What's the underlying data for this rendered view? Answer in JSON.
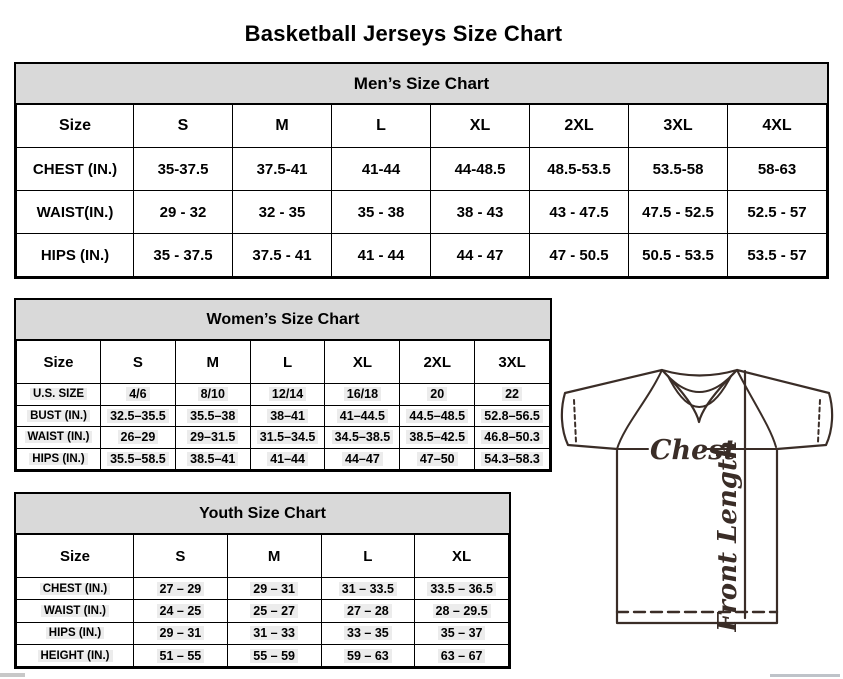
{
  "page_title": "Basketball Jerseys Size Chart",
  "tables": {
    "mens": {
      "title": "Men’s Size Chart",
      "columns": [
        "Size",
        "S",
        "M",
        "L",
        "XL",
        "2XL",
        "3XL",
        "4XL"
      ],
      "rows": [
        {
          "label": "CHEST (IN.)",
          "values": [
            "35-37.5",
            "37.5-41",
            "41-44",
            "44-48.5",
            "48.5-53.5",
            "53.5-58",
            "58-63"
          ]
        },
        {
          "label": "WAIST(IN.)",
          "values": [
            "29 - 32",
            "32 - 35",
            "35 - 38",
            "38 - 43",
            "43 - 47.5",
            "47.5 - 52.5",
            "52.5 - 57"
          ]
        },
        {
          "label": "HIPS (IN.)",
          "values": [
            "35 - 37.5",
            "37.5 - 41",
            "41 - 44",
            "44 - 47",
            "47 - 50.5",
            "50.5 - 53.5",
            "53.5 - 57"
          ]
        }
      ]
    },
    "womens": {
      "title": "Women’s Size Chart",
      "columns": [
        "Size",
        "S",
        "M",
        "L",
        "XL",
        "2XL",
        "3XL"
      ],
      "rows": [
        {
          "label": "U.S. SIZE",
          "values": [
            "4/6",
            "8/10",
            "12/14",
            "16/18",
            "20",
            "22"
          ]
        },
        {
          "label": "BUST (IN.)",
          "values": [
            "32.5–35.5",
            "35.5–38",
            "38–41",
            "41–44.5",
            "44.5–48.5",
            "52.8–56.5"
          ]
        },
        {
          "label": "WAIST (IN.)",
          "values": [
            "26–29",
            "29–31.5",
            "31.5–34.5",
            "34.5–38.5",
            "38.5–42.5",
            "46.8–50.3"
          ]
        },
        {
          "label": "HIPS (IN.)",
          "values": [
            "35.5–58.5",
            "38.5–41",
            "41–44",
            "44–47",
            "47–50",
            "54.3–58.3"
          ]
        }
      ]
    },
    "youth": {
      "title": "Youth Size Chart",
      "columns": [
        "Size",
        "S",
        "M",
        "L",
        "XL"
      ],
      "rows": [
        {
          "label": "CHEST (IN.)",
          "values": [
            "27 – 29",
            "29 – 31",
            "31 – 33.5",
            "33.5 – 36.5"
          ]
        },
        {
          "label": "WAIST (IN.)",
          "values": [
            "24 – 25",
            "25 – 27",
            "27 – 28",
            "28 – 29.5"
          ]
        },
        {
          "label": "HIPS (IN.)",
          "values": [
            "29 – 31",
            "31 – 33",
            "33 – 35",
            "35 – 37"
          ]
        },
        {
          "label": "HEIGHT (IN.)",
          "values": [
            "51 – 55",
            "55 – 59",
            "59 – 63",
            "63 – 67"
          ]
        }
      ]
    }
  },
  "diagram": {
    "chest_label": "Chest",
    "front_length_label": "Front Length"
  },
  "colors": {
    "header_bg": "#d9d9d9",
    "border": "#000000",
    "diagram_stroke": "#3a2d27",
    "highlight": "#ececec"
  }
}
